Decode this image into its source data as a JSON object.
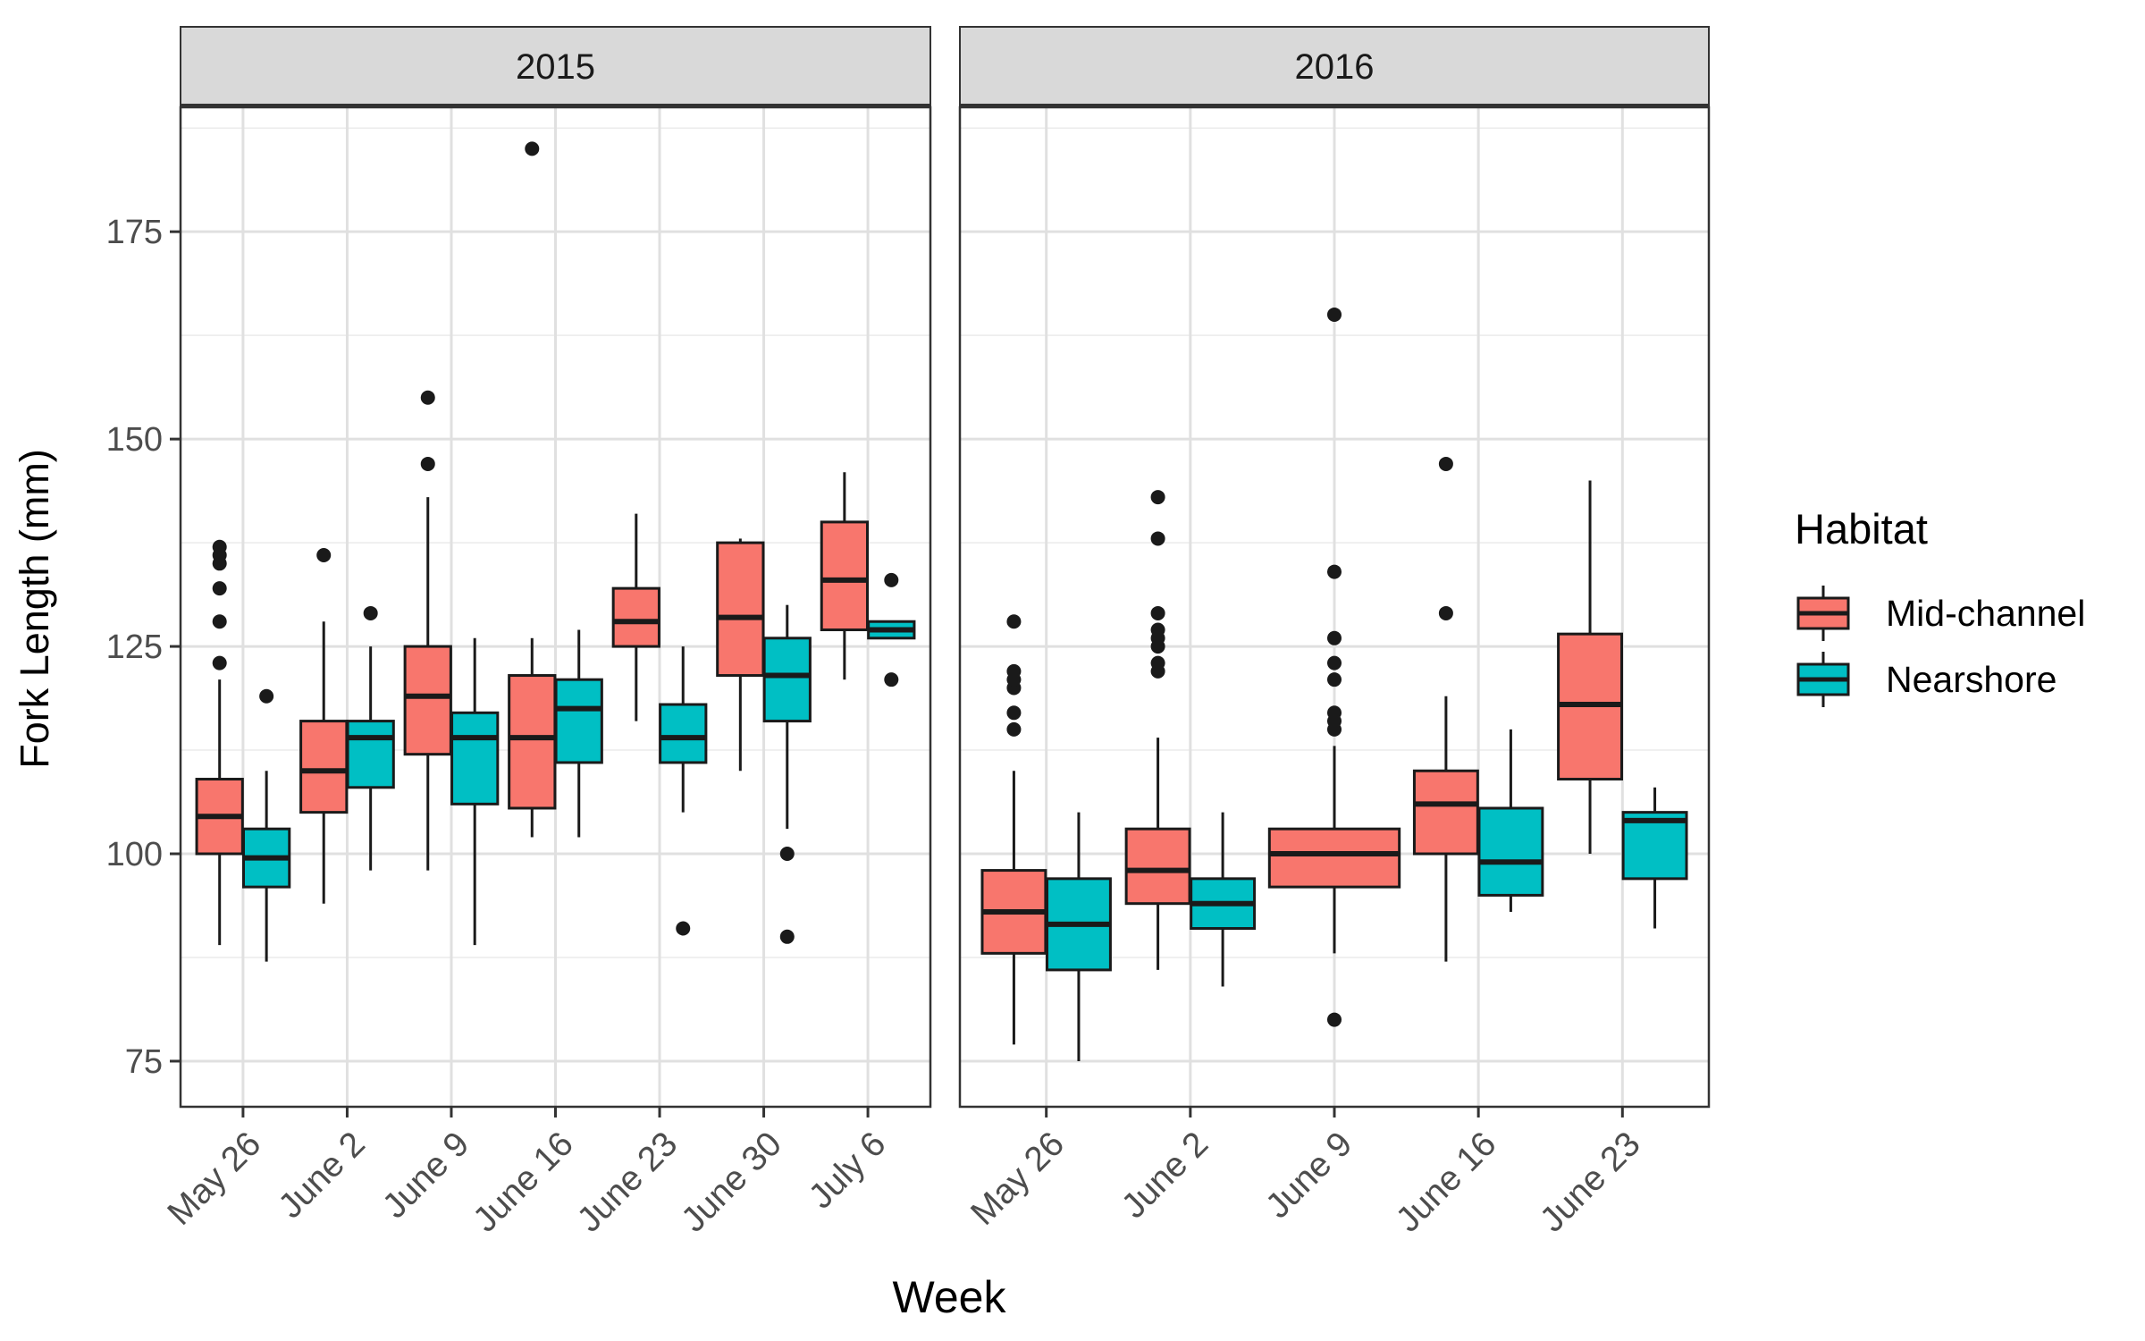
{
  "chart_data": {
    "type": "boxplot",
    "xlabel": "Week",
    "ylabel": "Fork Length (mm)",
    "ylim": [
      69.5,
      190
    ],
    "yticks": [
      75,
      100,
      125,
      150,
      175
    ],
    "grid": true,
    "legend": {
      "title": "Habitat",
      "position": "right",
      "entries": [
        {
          "name": "Mid-channel",
          "color": "#F8766D"
        },
        {
          "name": "Nearshore",
          "color": "#00BFC4"
        }
      ]
    },
    "panels": [
      {
        "title": "2015",
        "categories": [
          "May 26",
          "June 2",
          "June 9",
          "June 16",
          "June 23",
          "June 30",
          "July 6"
        ],
        "series": [
          {
            "name": "Mid-channel",
            "boxes": [
              {
                "category": "May 26",
                "lower_whisker": 89,
                "q1": 100,
                "median": 104.5,
                "q3": 109,
                "upper_whisker": 121,
                "outliers": [
                  123,
                  128,
                  132,
                  135,
                  136,
                  137
                ]
              },
              {
                "category": "June 2",
                "lower_whisker": 94,
                "q1": 105,
                "median": 110,
                "q3": 116,
                "upper_whisker": 128,
                "outliers": [
                  136
                ]
              },
              {
                "category": "June 9",
                "lower_whisker": 98,
                "q1": 112,
                "median": 119,
                "q3": 125,
                "upper_whisker": 143,
                "outliers": [
                  147,
                  155
                ]
              },
              {
                "category": "June 16",
                "lower_whisker": 102,
                "q1": 105.5,
                "median": 114,
                "q3": 121.5,
                "upper_whisker": 126,
                "outliers": [
                  185
                ]
              },
              {
                "category": "June 23",
                "lower_whisker": 116,
                "q1": 125,
                "median": 128,
                "q3": 132,
                "upper_whisker": 141,
                "outliers": []
              },
              {
                "category": "June 30",
                "lower_whisker": 110,
                "q1": 121.5,
                "median": 128.5,
                "q3": 137.5,
                "upper_whisker": 138,
                "outliers": []
              },
              {
                "category": "July 6",
                "lower_whisker": 121,
                "q1": 127,
                "median": 133,
                "q3": 140,
                "upper_whisker": 146,
                "outliers": []
              }
            ]
          },
          {
            "name": "Nearshore",
            "boxes": [
              {
                "category": "May 26",
                "lower_whisker": 87,
                "q1": 96,
                "median": 99.5,
                "q3": 103,
                "upper_whisker": 110,
                "outliers": [
                  119
                ]
              },
              {
                "category": "June 2",
                "lower_whisker": 98,
                "q1": 108,
                "median": 114,
                "q3": 116,
                "upper_whisker": 125,
                "outliers": [
                  129
                ]
              },
              {
                "category": "June 9",
                "lower_whisker": 89,
                "q1": 106,
                "median": 114,
                "q3": 117,
                "upper_whisker": 126,
                "outliers": []
              },
              {
                "category": "June 16",
                "lower_whisker": 102,
                "q1": 111,
                "median": 117.5,
                "q3": 121,
                "upper_whisker": 127,
                "outliers": []
              },
              {
                "category": "June 23",
                "lower_whisker": 105,
                "q1": 111,
                "median": 114,
                "q3": 118,
                "upper_whisker": 125,
                "outliers": [
                  91
                ]
              },
              {
                "category": "June 30",
                "lower_whisker": 103,
                "q1": 116,
                "median": 121.5,
                "q3": 126,
                "upper_whisker": 130,
                "outliers": [
                  90,
                  100
                ]
              },
              {
                "category": "July 6",
                "lower_whisker": 126,
                "q1": 126,
                "median": 127,
                "q3": 128,
                "upper_whisker": 128,
                "outliers": [
                  121,
                  133
                ]
              }
            ]
          }
        ]
      },
      {
        "title": "2016",
        "categories": [
          "May 26",
          "June 2",
          "June 9",
          "June 16",
          "June 23"
        ],
        "series": [
          {
            "name": "Mid-channel",
            "boxes": [
              {
                "category": "May 26",
                "lower_whisker": 77,
                "q1": 88,
                "median": 93,
                "q3": 98,
                "upper_whisker": 110,
                "outliers": [
                  115,
                  117,
                  120,
                  121,
                  122,
                  128
                ]
              },
              {
                "category": "June 2",
                "lower_whisker": 86,
                "q1": 94,
                "median": 98,
                "q3": 103,
                "upper_whisker": 114,
                "outliers": [
                  122,
                  123,
                  125,
                  126,
                  127,
                  129,
                  138,
                  143
                ]
              },
              {
                "category": "June 9",
                "lower_whisker": 88,
                "q1": 96,
                "median": 100,
                "q3": 103,
                "upper_whisker": 113,
                "outliers": [
                  80,
                  115,
                  116,
                  117,
                  121,
                  123,
                  126,
                  134,
                  165
                ]
              },
              {
                "category": "June 16",
                "lower_whisker": 87,
                "q1": 100,
                "median": 106,
                "q3": 110,
                "upper_whisker": 119,
                "outliers": [
                  129,
                  147
                ]
              },
              {
                "category": "June 23",
                "lower_whisker": 100,
                "q1": 109,
                "median": 118,
                "q3": 126.5,
                "upper_whisker": 145,
                "outliers": []
              }
            ]
          },
          {
            "name": "Nearshore",
            "boxes": [
              {
                "category": "May 26",
                "lower_whisker": 75,
                "q1": 86,
                "median": 91.5,
                "q3": 97,
                "upper_whisker": 105,
                "outliers": []
              },
              {
                "category": "June 2",
                "lower_whisker": 84,
                "q1": 91,
                "median": 94,
                "q3": 97,
                "upper_whisker": 105,
                "outliers": []
              },
              {
                "category": "June 16",
                "lower_whisker": 93,
                "q1": 95,
                "median": 99,
                "q3": 105.5,
                "upper_whisker": 115,
                "outliers": []
              },
              {
                "category": "June 23",
                "lower_whisker": 91,
                "q1": 97,
                "median": 104,
                "q3": 105,
                "upper_whisker": 108,
                "outliers": []
              }
            ]
          }
        ]
      }
    ]
  }
}
